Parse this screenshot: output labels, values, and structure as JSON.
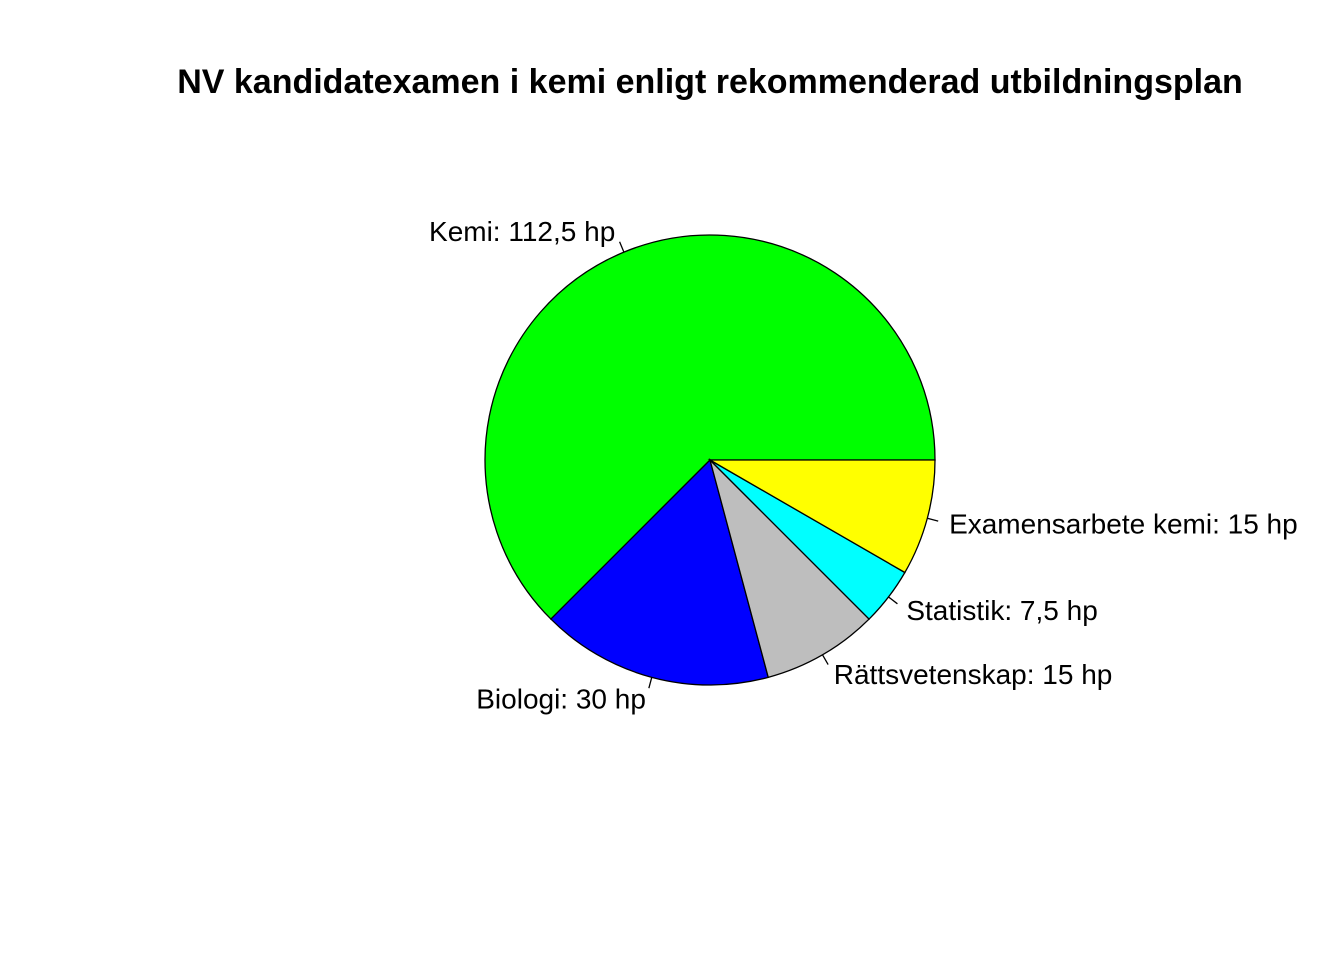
{
  "chart_data": {
    "type": "pie",
    "title": "NV kandidatexamen i kemi enligt rekommenderad utbildningsplan",
    "start_angle_deg": 0,
    "direction": "counterclockwise",
    "slices": [
      {
        "label": "Kemi: 112,5 hp",
        "value": 112.5,
        "color": "#00ff00"
      },
      {
        "label": "Biologi: 30 hp",
        "value": 30,
        "color": "#0000ff"
      },
      {
        "label": "Rättsvetenskap: 15 hp",
        "value": 15,
        "color": "#bebebe"
      },
      {
        "label": "Statistik: 7,5 hp",
        "value": 7.5,
        "color": "#00ffff"
      },
      {
        "label": "Examensarbete kemi: 15 hp",
        "value": 15,
        "color": "#ffff00"
      }
    ]
  }
}
